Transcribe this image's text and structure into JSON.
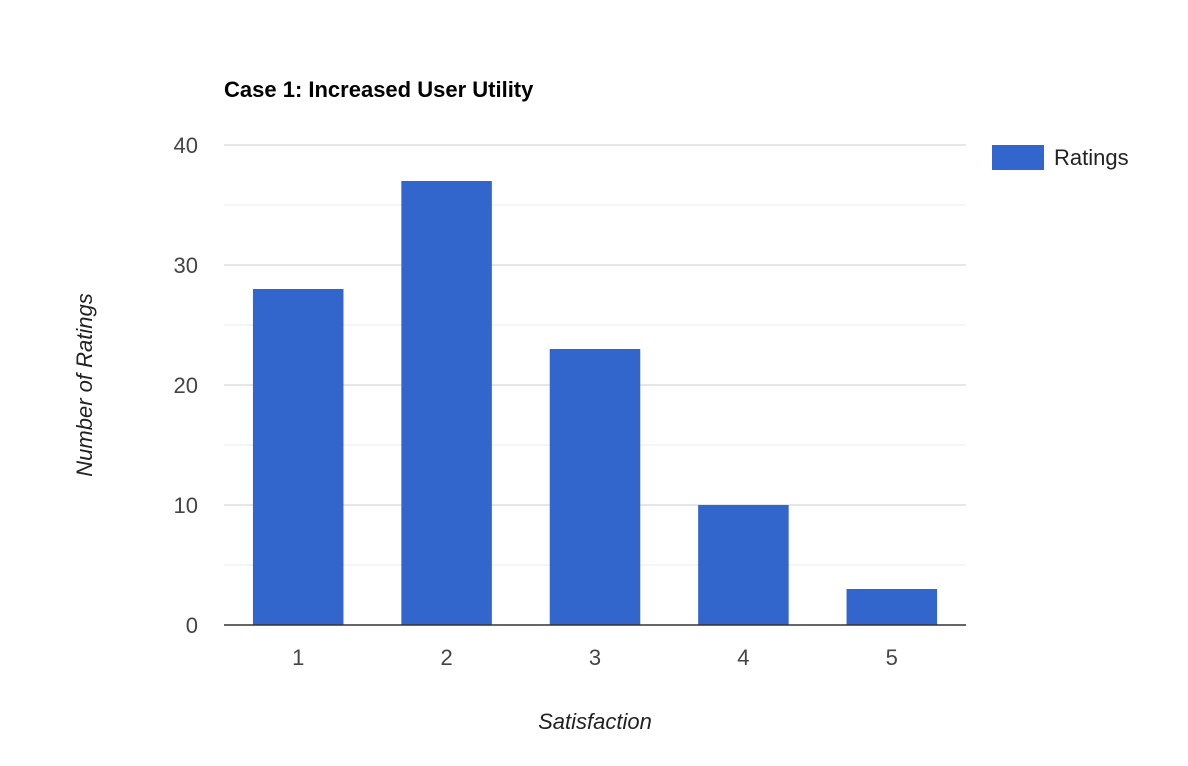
{
  "chart_data": {
    "type": "bar",
    "title": "Case 1: Increased User Utility",
    "xlabel": "Satisfaction",
    "ylabel": "Number of Ratings",
    "categories": [
      "1",
      "2",
      "3",
      "4",
      "5"
    ],
    "series": [
      {
        "name": "Ratings",
        "values": [
          28,
          37,
          23,
          10,
          3
        ],
        "color": "#3366cc"
      }
    ],
    "ylim": [
      0,
      40
    ],
    "yticks": [
      "0",
      "10",
      "20",
      "30",
      "40"
    ],
    "grid": true,
    "legend": "right"
  }
}
